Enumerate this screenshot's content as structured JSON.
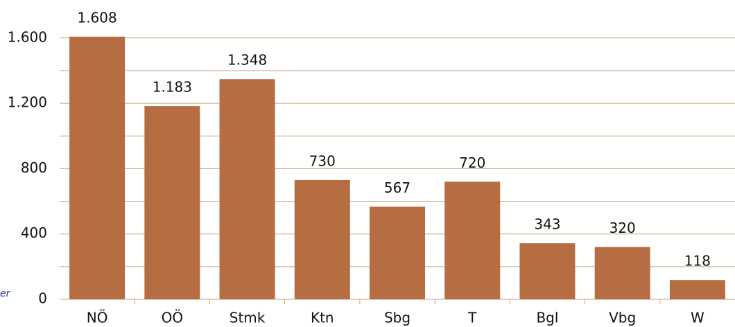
{
  "chart_data": {
    "type": "bar",
    "categories": [
      "NÖ",
      "OÖ",
      "Stmk",
      "Ktn",
      "Sbg",
      "T",
      "Bgl",
      "Vbg",
      "W"
    ],
    "values": [
      1608,
      1183,
      1348,
      730,
      567,
      720,
      343,
      320,
      118
    ],
    "value_labels": [
      "1.608",
      "1.183",
      "1.348",
      "730",
      "567",
      "720",
      "343",
      "320",
      "118"
    ],
    "color": "#b66d42",
    "ylim": [
      0,
      1800
    ],
    "yticks": [
      0,
      400,
      800,
      {
        "value": 1200,
        "label": "1.200"
      },
      {
        "value": 1600,
        "label": "1.600"
      }
    ],
    "minor_yticks": [
      200,
      600,
      1000,
      1400
    ],
    "grid": true,
    "annotation": "er"
  }
}
